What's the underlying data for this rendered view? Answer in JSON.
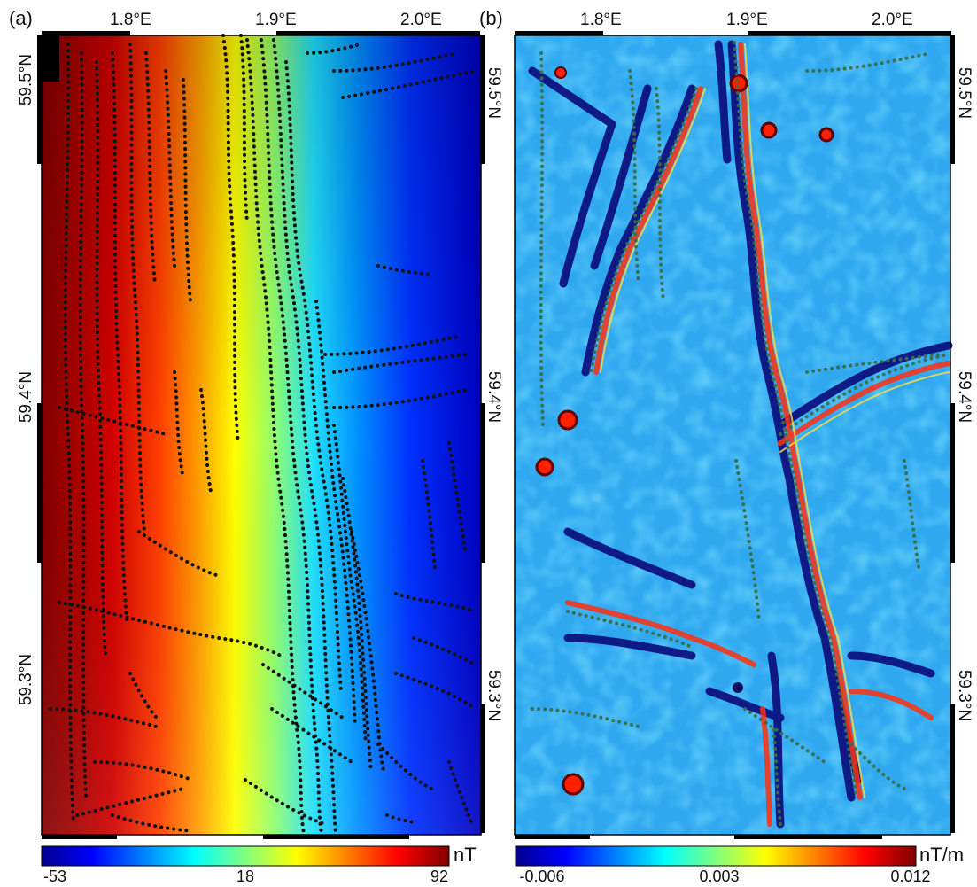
{
  "panels": [
    {
      "label": "(a)",
      "lon_ticks": [
        "1.8°E",
        "1.9°E",
        "2.0°E"
      ],
      "lat_ticks": [
        "59.5°N",
        "59.4°N",
        "59.3°N"
      ],
      "colorbar": {
        "ticks": [
          "-53",
          "18",
          "92"
        ],
        "unit": "nT",
        "colormap": "jet"
      }
    },
    {
      "label": "(b)",
      "lon_ticks": [
        "1.8°E",
        "1.9°E",
        "2.0°E"
      ],
      "lat_ticks": [
        "59.5°N",
        "59.4°N",
        "59.3°N"
      ],
      "colorbar": {
        "ticks": [
          "-0.006",
          "0.003",
          "0.012"
        ],
        "unit": "nT/m",
        "colormap": "jet"
      }
    }
  ],
  "colors": {
    "jet": [
      "#00008f",
      "#0000ff",
      "#0080ff",
      "#00ffff",
      "#80ff80",
      "#ffff00",
      "#ff8000",
      "#ff0000",
      "#800000"
    ],
    "dots_a": "#111111",
    "dots_b": "#3c6e4a",
    "frame": "#000000"
  }
}
